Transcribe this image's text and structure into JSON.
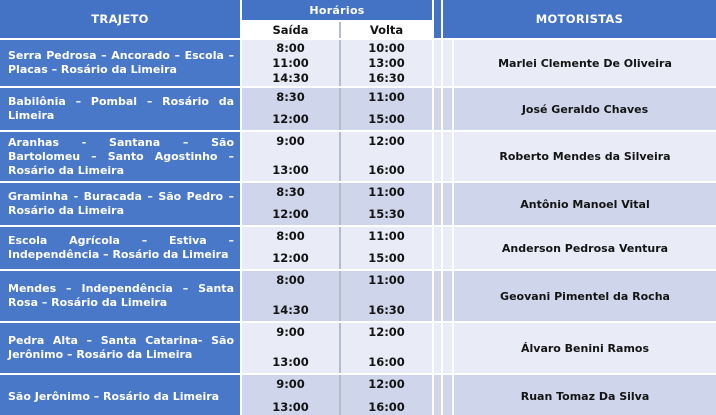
{
  "table": {
    "headers": {
      "trajeto": "TRAJETO",
      "horarios": "Horários",
      "saida": "Saída",
      "volta": "Volta",
      "motoristas": "MOTORISTAS"
    },
    "rows": [
      {
        "route": "Serra Pedrosa – Ancorado – Escola – Placas – Rosário da Limeira",
        "saida": [
          "8:00",
          "11:00",
          "14:30"
        ],
        "volta": [
          "10:00",
          "13:00",
          "16:30"
        ],
        "driver": "Marlei Clemente De Oliveira"
      },
      {
        "route": "Babilônia – Pombal – Rosário da Limeira",
        "saida": [
          "8:30",
          "12:00"
        ],
        "volta": [
          "11:00",
          "15:00"
        ],
        "driver": "José Geraldo Chaves"
      },
      {
        "route": "Aranhas - Santana – São Bartolomeu – Santo Agostinho – Rosário da Limeira",
        "saida": [
          "9:00",
          "13:00"
        ],
        "volta": [
          "12:00",
          "16:00"
        ],
        "driver": "Roberto Mendes da Silveira"
      },
      {
        "route": "Graminha - Buracada – São Pedro – Rosário da Limeira",
        "saida": [
          "8:30",
          "12:00"
        ],
        "volta": [
          "11:00",
          "15:30"
        ],
        "driver": "Antônio Manoel Vital"
      },
      {
        "route": "Escola Agrícola – Estiva – Independência – Rosário da Limeira",
        "saida": [
          "8:00",
          "12:00"
        ],
        "volta": [
          "11:00",
          "15:00"
        ],
        "driver": "Anderson Pedrosa Ventura"
      },
      {
        "route": "Mendes – Independência – Santa Rosa – Rosário da Limeira",
        "saida": [
          "8:00",
          "14:30"
        ],
        "volta": [
          "11:00",
          "16:30"
        ],
        "driver": "Geovani Pimentel da Rocha"
      },
      {
        "route": "Pedra Alta – Santa Catarina- São Jerônimo – Rosário da Limeira",
        "saida": [
          "9:00",
          "13:00"
        ],
        "volta": [
          "12:00",
          "16:00"
        ],
        "driver": "Álvaro Benini Ramos"
      },
      {
        "route": "São Jerônimo – Rosário da Limeira",
        "saida": [
          "9:00",
          "13:00"
        ],
        "volta": [
          "12:00",
          "16:00"
        ],
        "driver": "Ruan Tomaz Da Silva"
      }
    ]
  },
  "colors": {
    "header_blue": "#4472C4",
    "route_blue": "#4a78c8",
    "band_light": "#E9ECF6",
    "band_dark": "#CFD6EB",
    "divider_gray": "#b6bccd"
  }
}
